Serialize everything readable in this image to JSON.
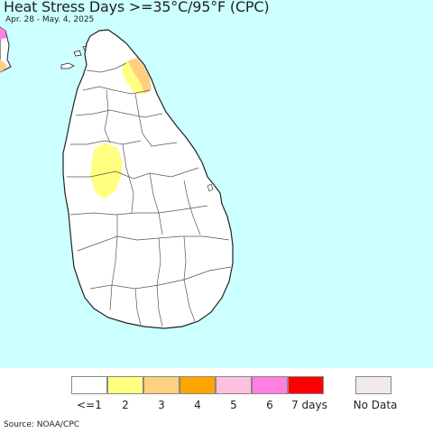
{
  "title": "Heat Stress Days >=35°C/95°F (CPC)",
  "subtitle": "Apr. 28 - May. 4, 2025",
  "source": "Source: NOAA/CPC",
  "colors": {
    "ocean": "#ccffff",
    "land": "#ffffff",
    "border": "#555555",
    "coast": "#222222"
  },
  "legend": {
    "items": [
      {
        "label": "<=1",
        "color": "#ffffff"
      },
      {
        "label": "2",
        "color": "#ffff80"
      },
      {
        "label": "3",
        "color": "#ffd080"
      },
      {
        "label": "4",
        "color": "#ffa500"
      },
      {
        "label": "5",
        "color": "#ffc0e0"
      },
      {
        "label": "6",
        "color": "#ff80e0"
      },
      {
        "label": "7 days",
        "color": "#ff0000"
      }
    ],
    "no_data": {
      "label": "No Data",
      "color": "#f0eaea"
    }
  }
}
